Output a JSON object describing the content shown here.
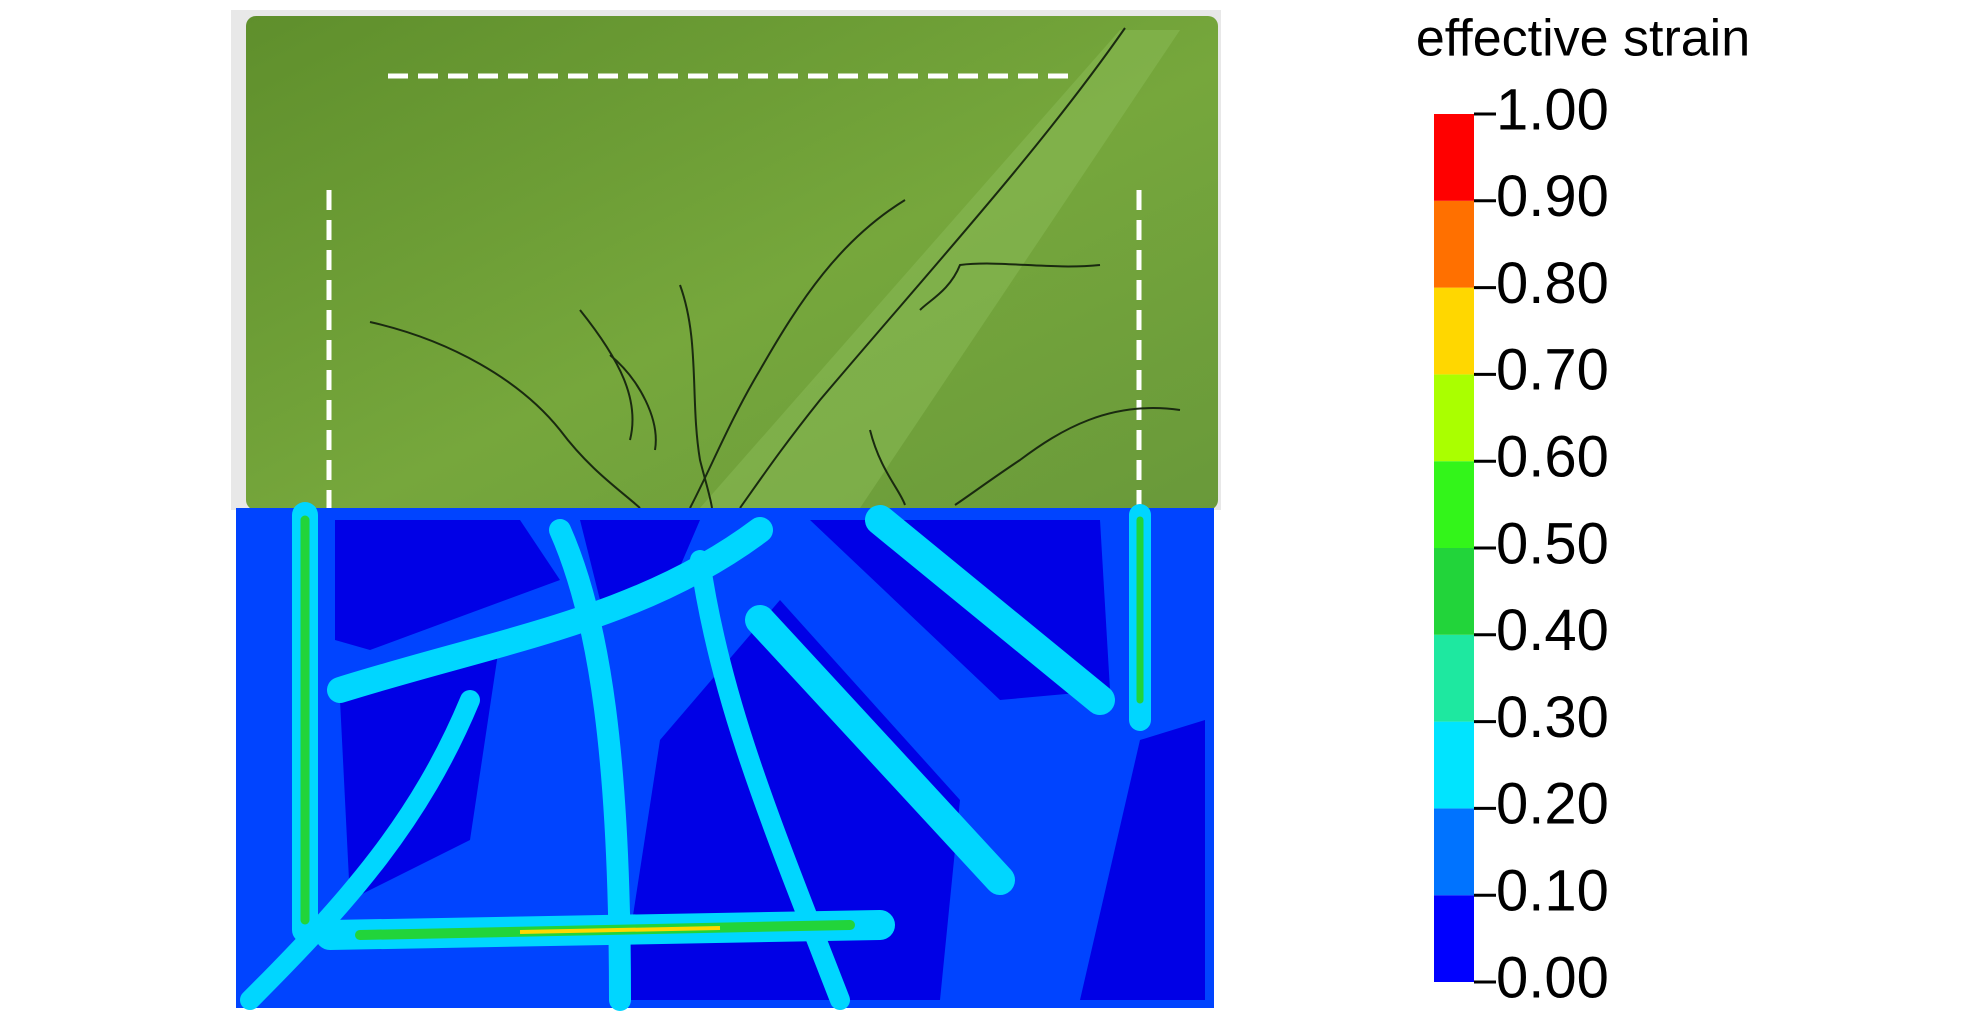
{
  "chart_data": {
    "type": "colorbar",
    "title": "effective strain",
    "clim": [
      0,
      1
    ],
    "ticks": [
      {
        "value": 0,
        "label": "0.00"
      },
      {
        "value": 0.1,
        "label": "0.10"
      },
      {
        "value": 0.2,
        "label": "0.20"
      },
      {
        "value": 0.3,
        "label": "0.30"
      },
      {
        "value": 0.4,
        "label": "0.40"
      },
      {
        "value": 0.5,
        "label": "0.50"
      },
      {
        "value": 0.6,
        "label": "0.60"
      },
      {
        "value": 0.7,
        "label": "0.70"
      },
      {
        "value": 0.8,
        "label": "0.80"
      },
      {
        "value": 0.9,
        "label": "0.90"
      },
      {
        "value": 1,
        "label": "1.00"
      }
    ],
    "colors": [
      "#0000ff",
      "#0073ff",
      "#00e4ff",
      "#1ee8a0",
      "#22d43a",
      "#33f51a",
      "#aaff00",
      "#ffd700",
      "#ff7000",
      "#ff0000"
    ]
  }
}
